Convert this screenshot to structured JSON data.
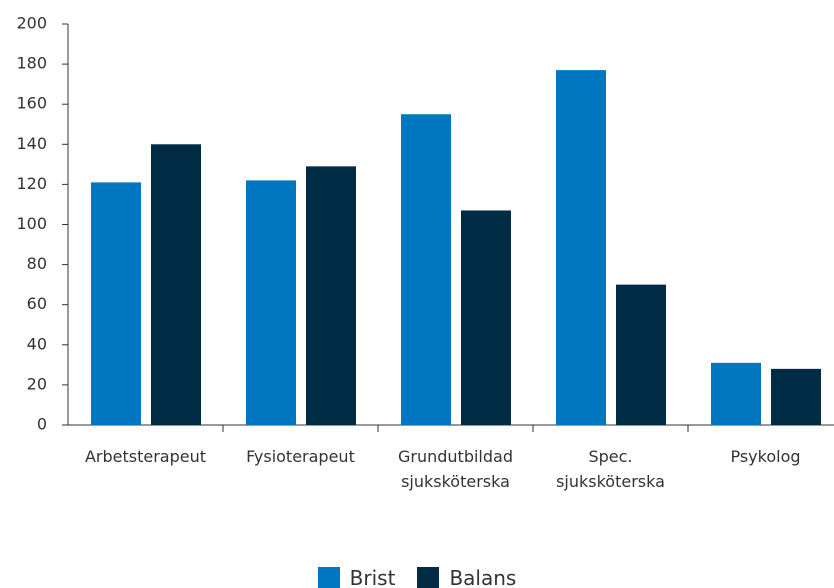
{
  "chart_data": {
    "type": "bar",
    "categories": [
      "Arbetsterapeut",
      "Fysioterapeut",
      "Grundutbildad\nsjuksköterska",
      "Spec.\nsjuksköterska",
      "Psykolog"
    ],
    "series": [
      {
        "name": "Brist",
        "color": "#0077c0",
        "values": [
          121,
          122,
          155,
          177,
          31
        ]
      },
      {
        "name": "Balans",
        "color": "#002b45",
        "values": [
          140,
          129,
          107,
          70,
          28
        ]
      }
    ],
    "ylim": [
      0,
      200
    ],
    "yticks": [
      0,
      20,
      40,
      60,
      80,
      100,
      120,
      140,
      160,
      180,
      200
    ],
    "legend_position": "bottom"
  }
}
